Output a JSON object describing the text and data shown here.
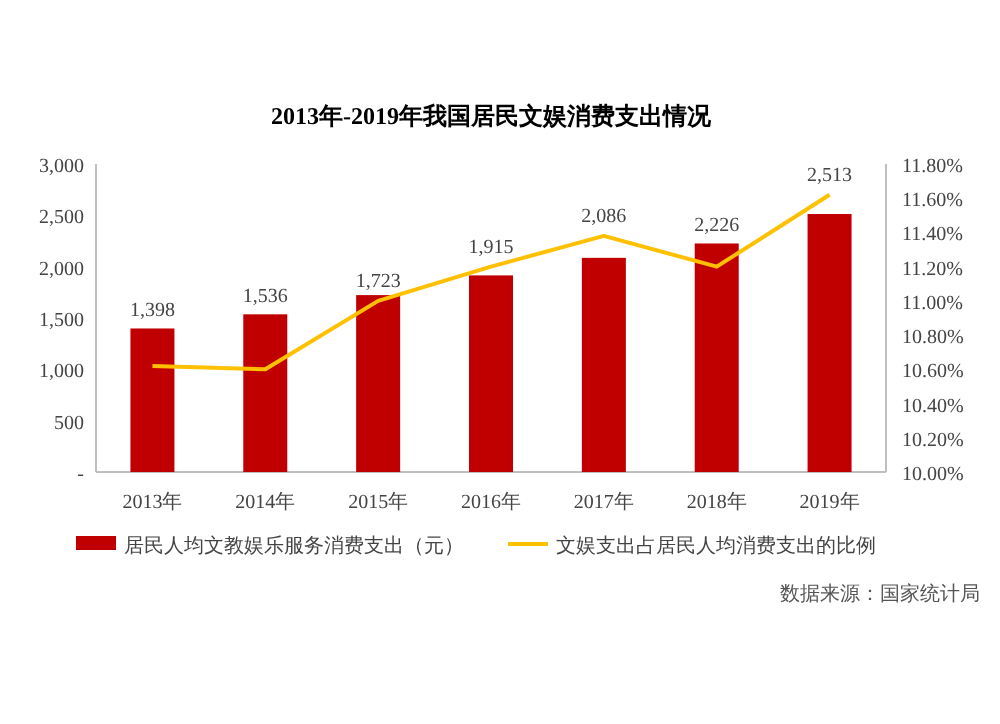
{
  "chart_data": {
    "type": "bar",
    "title": "2013年-2019年我国居民文娱消费支出情况",
    "categories": [
      "2013年",
      "2014年",
      "2015年",
      "2016年",
      "2017年",
      "2018年",
      "2019年"
    ],
    "series": [
      {
        "name": "居民人均文教娱乐服务消费支出（元）",
        "color": "#c00000",
        "values": [
          1398,
          1536,
          1723,
          1915,
          2086,
          2226,
          2513
        ],
        "value_labels": [
          "1,398",
          "1,536",
          "1,723",
          "1,915",
          "2,086",
          "2,226",
          "2,513"
        ]
      },
      {
        "name": "文娱支出占居民人均消费支出的比例",
        "type": "line",
        "axis": "y2",
        "color": "#ffc000",
        "values": [
          10.62,
          10.6,
          11.0,
          11.2,
          11.38,
          11.2,
          11.62
        ]
      }
    ],
    "ylim": [
      0,
      3000
    ],
    "yticks": [
      {
        "value": 0,
        "label": "-"
      },
      500,
      {
        "value": 1000,
        "label": "1,000"
      },
      {
        "value": 1500,
        "label": "1,500"
      },
      {
        "value": 2000,
        "label": "2,000"
      },
      {
        "value": 2500,
        "label": "2,500"
      },
      {
        "value": 3000,
        "label": "3,000"
      }
    ],
    "y2lim": [
      10,
      11.8
    ],
    "y2ticks": [
      {
        "value": 10,
        "label": "10.00%"
      },
      {
        "value": 10.2,
        "label": "10.20%"
      },
      {
        "value": 10.4,
        "label": "10.40%"
      },
      {
        "value": 10.6,
        "label": "10.60%"
      },
      {
        "value": 10.8,
        "label": "10.80%"
      },
      {
        "value": 11,
        "label": "11.00%"
      },
      {
        "value": 11.2,
        "label": "11.20%"
      },
      {
        "value": 11.4,
        "label": "11.40%"
      },
      {
        "value": 11.6,
        "label": "11.60%"
      },
      {
        "value": 11.8,
        "label": "11.80%"
      }
    ],
    "legend": "bottom",
    "grid": false,
    "marker": "none",
    "annotations": [
      "数据来源：国家统计局"
    ]
  }
}
